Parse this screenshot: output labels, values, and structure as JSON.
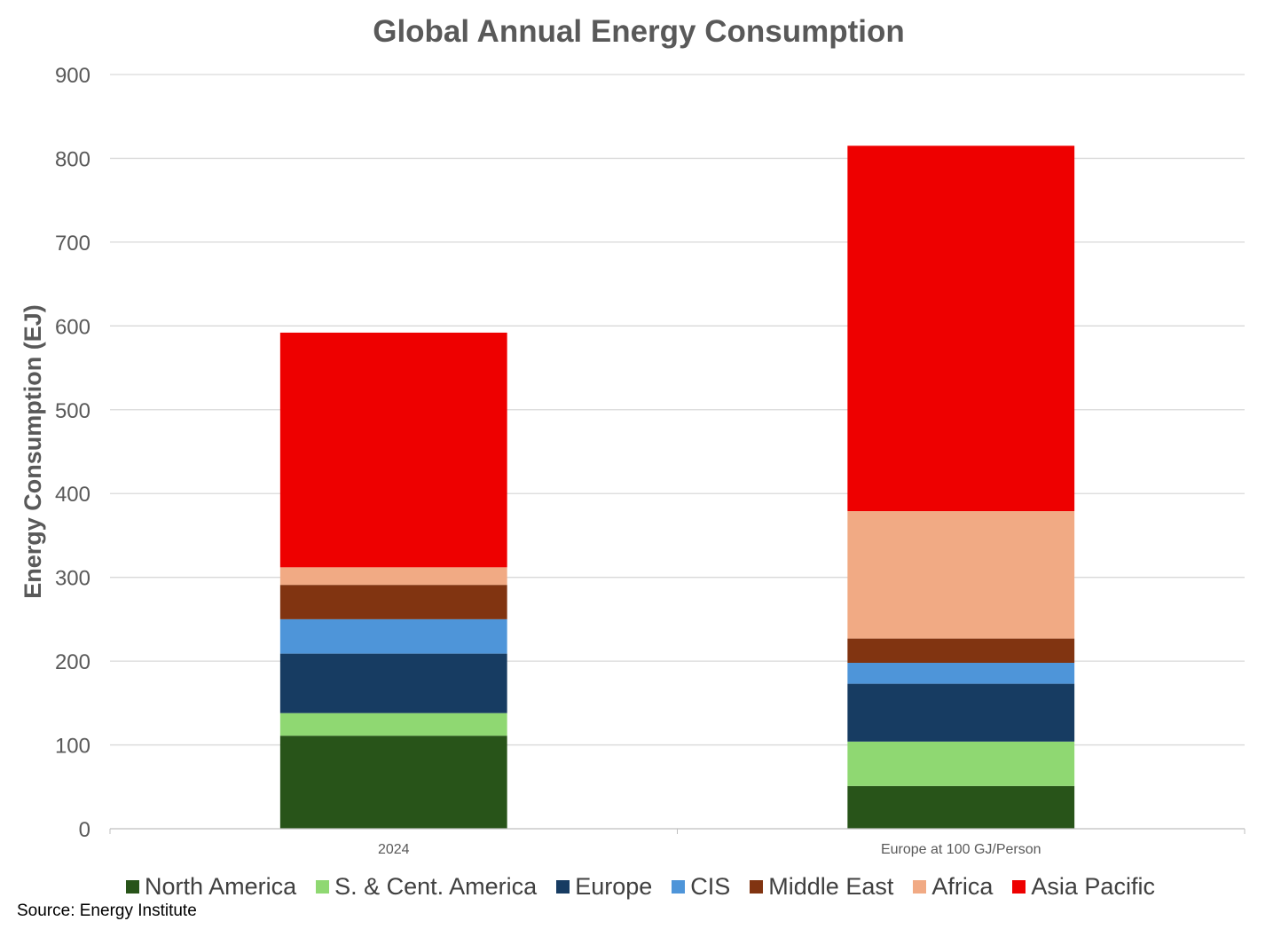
{
  "chart_data": {
    "type": "bar",
    "stacked": true,
    "title": "Global Annual Energy Consumption",
    "xlabel": "",
    "ylabel": "Energy Consumption (EJ)",
    "ylim": [
      0,
      900
    ],
    "yticks": [
      0,
      100,
      200,
      300,
      400,
      500,
      600,
      700,
      800,
      900
    ],
    "grid": true,
    "legend_position": "bottom",
    "categories": [
      "2024",
      "Europe at 100 GJ/Person"
    ],
    "series": [
      {
        "name": "North America",
        "color": "#285419",
        "values": [
          111,
          51
        ]
      },
      {
        "name": "S. & Cent. America",
        "color": "#8fd872",
        "values": [
          27,
          53
        ]
      },
      {
        "name": "Europe",
        "color": "#173c62",
        "values": [
          71,
          69
        ]
      },
      {
        "name": "CIS",
        "color": "#4e95d9",
        "values": [
          41,
          25
        ]
      },
      {
        "name": "Middle East",
        "color": "#813411",
        "values": [
          41,
          29
        ]
      },
      {
        "name": "Africa",
        "color": "#f1aa84",
        "values": [
          21,
          152
        ]
      },
      {
        "name": "Asia Pacific",
        "color": "#ee0000",
        "values": [
          280,
          436
        ]
      }
    ]
  },
  "source": "Source: Energy Institute"
}
